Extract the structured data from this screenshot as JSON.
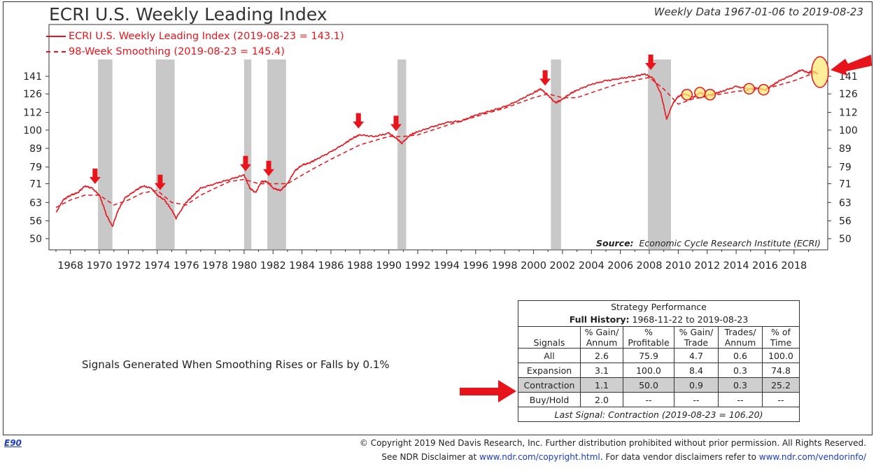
{
  "chart_data": {
    "type": "line",
    "title": "ECRI U.S. Weekly Leading Index",
    "subtitle": "Weekly Data 1967-01-06 to 2019-08-23",
    "xlim": [
      1967,
      2019.7
    ],
    "ylim": [
      48,
      165
    ],
    "log_scale": true,
    "y_ticks": [
      50,
      56,
      63,
      71,
      79,
      89,
      100,
      112,
      126,
      141
    ],
    "x_ticks": [
      1968,
      1970,
      1972,
      1974,
      1976,
      1978,
      1980,
      1982,
      1984,
      1986,
      1988,
      1990,
      1992,
      1994,
      1996,
      1998,
      2000,
      2002,
      2004,
      2006,
      2008,
      2010,
      2012,
      2014,
      2016,
      2018
    ],
    "series": [
      {
        "name": "ECRI U.S. Weekly Leading Index (2019-08-23 = 143.1)",
        "style": "solid",
        "x": [
          1967.0,
          1967.5,
          1968.0,
          1968.5,
          1969.0,
          1969.5,
          1970.0,
          1970.5,
          1970.9,
          1971.3,
          1971.8,
          1972.5,
          1973.0,
          1973.6,
          1974.0,
          1974.5,
          1975.0,
          1975.3,
          1976.0,
          1976.5,
          1977.0,
          1978.0,
          1979.0,
          1980.0,
          1980.4,
          1980.8,
          1981.2,
          1981.6,
          1982.0,
          1982.5,
          1983.0,
          1983.5,
          1984.0,
          1984.5,
          1985.0,
          1986.0,
          1987.0,
          1987.5,
          1988.0,
          1989.0,
          1990.0,
          1990.5,
          1990.9,
          1991.5,
          1992.0,
          1993.0,
          1994.0,
          1995.0,
          1996.0,
          1997.0,
          1998.0,
          1999.0,
          2000.0,
          2000.5,
          2001.0,
          2001.5,
          2001.9,
          2002.5,
          2003.0,
          2004.0,
          2005.0,
          2006.0,
          2007.0,
          2007.7,
          2008.3,
          2008.8,
          2009.2,
          2009.6,
          2010.0,
          2010.5,
          2011.0,
          2011.5,
          2012.0,
          2012.5,
          2013.0,
          2014.0,
          2015.0,
          2015.5,
          2016.0,
          2016.5,
          2017.0,
          2018.0,
          2018.5,
          2019.0,
          2019.3,
          2019.65
        ],
        "values": [
          59,
          64,
          66,
          67,
          70,
          69,
          66,
          58,
          54,
          60,
          65,
          68,
          70,
          69,
          66,
          64,
          60,
          57,
          63,
          66,
          69,
          71,
          73,
          75,
          69,
          67,
          72,
          72,
          69,
          68,
          71,
          77,
          80,
          81,
          83,
          87,
          92,
          95,
          97,
          96,
          98,
          95,
          92,
          97,
          99,
          102,
          105,
          106,
          110,
          113,
          116,
          121,
          127,
          130,
          125,
          119,
          121,
          126,
          129,
          134,
          137,
          139,
          141,
          143,
          139,
          126,
          107,
          118,
          124,
          126,
          123,
          127,
          125,
          126,
          128,
          132,
          130,
          131,
          129,
          133,
          137,
          143,
          147,
          144,
          146,
          143.1
        ]
      },
      {
        "name": "98-Week Smoothing (2019-08-23 = 145.4)",
        "style": "dashed",
        "x": [
          1967.0,
          1968.0,
          1969.0,
          1970.0,
          1971.0,
          1972.0,
          1973.0,
          1974.0,
          1975.0,
          1976.0,
          1977.0,
          1978.0,
          1979.0,
          1980.0,
          1981.0,
          1982.0,
          1983.0,
          1984.0,
          1985.0,
          1986.0,
          1988.0,
          1990.0,
          1991.0,
          1992.0,
          1994.0,
          1996.0,
          1998.0,
          2000.0,
          2001.0,
          2002.0,
          2003.0,
          2004.0,
          2006.0,
          2008.0,
          2009.0,
          2010.0,
          2011.0,
          2012.0,
          2014.0,
          2016.0,
          2018.0,
          2019.65
        ],
        "values": [
          61,
          64,
          66,
          66,
          62,
          64,
          67,
          68,
          63,
          62,
          66,
          69,
          72,
          73,
          71,
          71,
          71,
          75,
          79,
          83,
          91,
          96,
          96,
          97,
          103,
          109,
          115,
          123,
          126,
          123,
          123,
          127,
          135,
          140,
          130,
          118,
          122,
          124,
          128,
          130,
          137,
          145.4
        ]
      }
    ],
    "recessions": [
      [
        1969.9,
        1970.9
      ],
      [
        1973.9,
        1975.2
      ],
      [
        1980.0,
        1980.5
      ],
      [
        1981.6,
        1982.9
      ],
      [
        1990.6,
        1991.2
      ],
      [
        2001.2,
        2001.9
      ],
      [
        2007.9,
        2009.5
      ]
    ],
    "arrow_years": [
      1969.7,
      1974.2,
      1980.1,
      1981.7,
      1987.9,
      1990.5,
      2000.8,
      2008.1
    ],
    "circle_years": [
      2010.6,
      2011.5,
      2012.2,
      2014.9,
      2015.9
    ],
    "source_label": "Source:",
    "source_text": "Economic Cycle Research Institute (ECRI)"
  },
  "note": "Signals Generated When Smoothing Rises or Falls by 0.1%",
  "performance": {
    "title": "Strategy Performance",
    "history_label": "Full History:",
    "history_range": "1968-11-22 to 2019-08-23",
    "headers": [
      "Signals",
      "% Gain/ Annum",
      "% Profitable",
      "% Gain/ Trade",
      "Trades/ Annum",
      "% of Time"
    ],
    "rows": [
      [
        "All",
        "2.6",
        "75.9",
        "4.7",
        "0.6",
        "100.0"
      ],
      [
        "Expansion",
        "3.1",
        "100.0",
        "8.4",
        "0.3",
        "74.8"
      ],
      [
        "Contraction",
        "1.1",
        "50.0",
        "0.9",
        "0.3",
        "25.2"
      ],
      [
        "Buy/Hold",
        "2.0",
        "--",
        "--",
        "--",
        "--"
      ]
    ],
    "last_signal": "Last Signal: Contraction (2019-08-23 = 106.20)"
  },
  "footer": {
    "code": "E90",
    "copyright": "© Copyright 2019 Ned Davis Research, Inc. Further distribution prohibited without prior permission. All Rights Reserved.",
    "disclaimer_prefix": "See NDR Disclaimer at",
    "disclaimer_link": "www.ndr.com/copyright.html",
    "disclaimer_mid": ". For data vendor disclaimers refer to",
    "vendor_link": "www.ndr.com/vendorinfo/"
  },
  "colors": {
    "line": "#e8141b",
    "recession": "#c8c8c8",
    "circle": "#ffe97a"
  }
}
